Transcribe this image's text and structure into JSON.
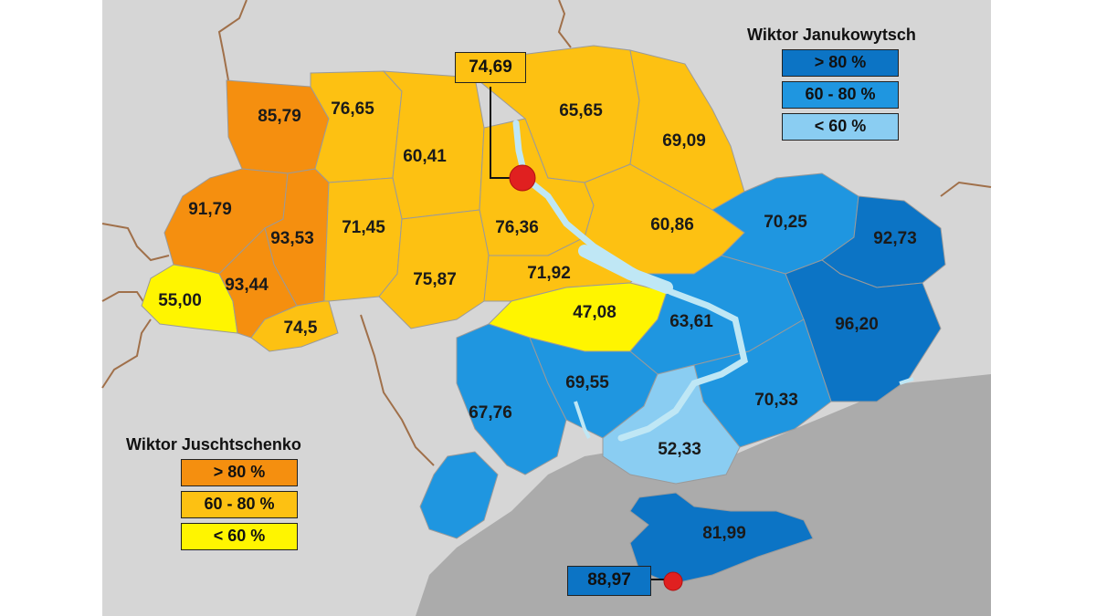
{
  "colors": {
    "background_land": "#d6d6d6",
    "sea": "#ababab",
    "border_lines": "#a0704a",
    "water": "#bfe7f5",
    "juschtschenko_over80": "#f58f0f",
    "juschtschenko_60_80": "#fdc112",
    "juschtschenko_under60": "#fff500",
    "janukowytsch_over80": "#0c74c5",
    "janukowytsch_60_80": "#1f96e0",
    "janukowytsch_under60": "#8acdf2",
    "capital_marker": "#e02020"
  },
  "legend_janukowytsch": {
    "title": "Wiktor Janukowytsch",
    "items": [
      {
        "label": "> 80 %",
        "color": "#0c74c5"
      },
      {
        "label": "60 - 80 %",
        "color": "#1f96e0"
      },
      {
        "label": "< 60 %",
        "color": "#8acdf2"
      }
    ]
  },
  "legend_juschtschenko": {
    "title": "Wiktor Juschtschenko",
    "items": [
      {
        "label": "> 80 %",
        "color": "#f58f0f"
      },
      {
        "label": "60 - 80 %",
        "color": "#fdc112"
      },
      {
        "label": "< 60 %",
        "color": "#fff500"
      }
    ]
  },
  "callouts": {
    "kyiv_city": "74,69",
    "sevastopol": "88,97"
  },
  "regions": [
    {
      "id": "volyn",
      "value": "85,79",
      "category": "juschtschenko_over80"
    },
    {
      "id": "rivne",
      "value": "76,65",
      "category": "juschtschenko_60_80"
    },
    {
      "id": "zhytomyr",
      "value": "60,41",
      "category": "juschtschenko_60_80"
    },
    {
      "id": "chernihiv",
      "value": "65,65",
      "category": "juschtschenko_60_80"
    },
    {
      "id": "sumy",
      "value": "69,09",
      "category": "juschtschenko_60_80"
    },
    {
      "id": "lviv",
      "value": "91,79",
      "category": "juschtschenko_over80"
    },
    {
      "id": "ternopil",
      "value": "93,53",
      "category": "juschtschenko_over80"
    },
    {
      "id": "khmelnytskyi",
      "value": "71,45",
      "category": "juschtschenko_60_80"
    },
    {
      "id": "kyiv_oblast",
      "value": "76,36",
      "category": "juschtschenko_60_80"
    },
    {
      "id": "poltava",
      "value": "60,86",
      "category": "juschtschenko_60_80"
    },
    {
      "id": "kharkiv",
      "value": "70,25",
      "category": "janukowytsch_60_80"
    },
    {
      "id": "luhansk",
      "value": "92,73",
      "category": "janukowytsch_over80"
    },
    {
      "id": "zakarpattia",
      "value": "55,00",
      "category": "juschtschenko_under60"
    },
    {
      "id": "ivano_frankivsk",
      "value": "93,44",
      "category": "juschtschenko_over80"
    },
    {
      "id": "vinnytsia",
      "value": "75,87",
      "category": "juschtschenko_60_80"
    },
    {
      "id": "cherkasy",
      "value": "71,92",
      "category": "juschtschenko_60_80"
    },
    {
      "id": "chernivtsi",
      "value": "74,5",
      "category": "juschtschenko_60_80"
    },
    {
      "id": "kirovohrad",
      "value": "47,08",
      "category": "juschtschenko_under60"
    },
    {
      "id": "dnipropetrovsk",
      "value": "63,61",
      "category": "janukowytsch_60_80"
    },
    {
      "id": "donetsk",
      "value": "96,20",
      "category": "janukowytsch_over80"
    },
    {
      "id": "odesa",
      "value": "67,76",
      "category": "janukowytsch_60_80"
    },
    {
      "id": "mykolaiv",
      "value": "69,55",
      "category": "janukowytsch_60_80"
    },
    {
      "id": "zaporizhzhia",
      "value": "70,33",
      "category": "janukowytsch_60_80"
    },
    {
      "id": "kherson",
      "value": "52,33",
      "category": "janukowytsch_under60"
    },
    {
      "id": "crimea",
      "value": "81,99",
      "category": "janukowytsch_over80"
    }
  ]
}
